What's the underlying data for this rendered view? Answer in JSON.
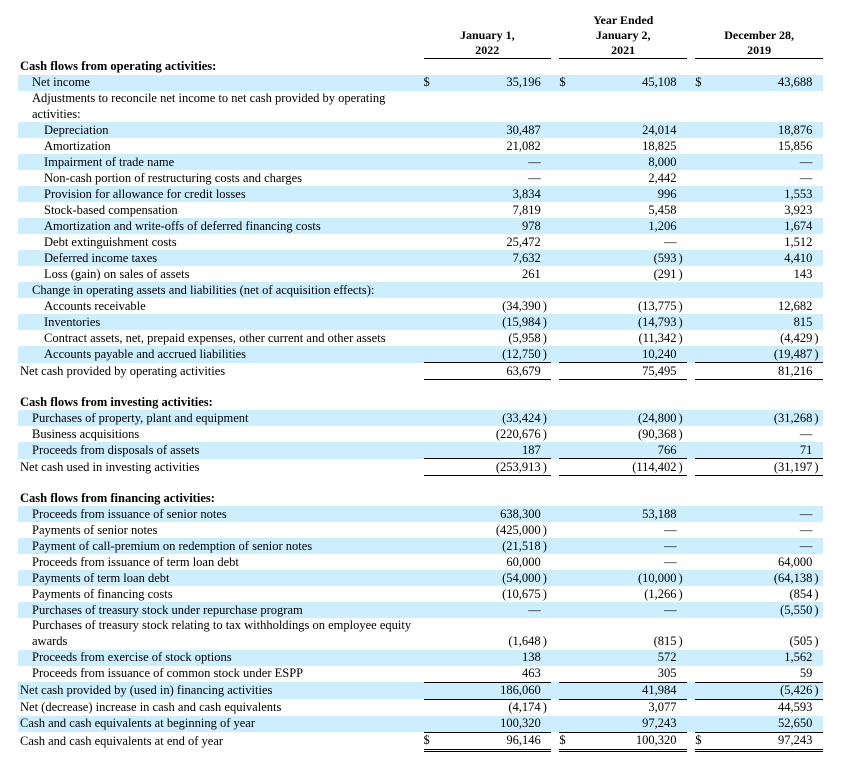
{
  "colors": {
    "shade": "#cceeff",
    "text": "#000000",
    "bg": "#ffffff"
  },
  "column_widths": {
    "label": 380,
    "gap": 8,
    "sym": 14,
    "num": 100,
    "par": 8
  },
  "header": {
    "mega": "Year Ended",
    "cols": [
      "January 1,\n2022",
      "January 2,\n2021",
      "December 28,\n2019"
    ]
  },
  "rows": [
    {
      "label": "Cash flows from operating activities:",
      "section": true
    },
    {
      "label": "Net income",
      "indent": 1,
      "shade": true,
      "sym": "$",
      "v": [
        "35,196",
        "45,108",
        "43,688"
      ]
    },
    {
      "label": "Adjustments to reconcile net income to net cash provided by operating activities:",
      "indent": 1,
      "wrap": true
    },
    {
      "label": "Depreciation",
      "indent": 2,
      "shade": true,
      "v": [
        "30,487",
        "24,014",
        "18,876"
      ]
    },
    {
      "label": "Amortization",
      "indent": 2,
      "v": [
        "21,082",
        "18,825",
        "15,856"
      ]
    },
    {
      "label": "Impairment of trade name",
      "indent": 2,
      "shade": true,
      "v": [
        "—",
        "8,000",
        "—"
      ]
    },
    {
      "label": "Non-cash portion of restructuring costs and charges",
      "indent": 2,
      "v": [
        "—",
        "2,442",
        "—"
      ]
    },
    {
      "label": "Provision for allowance for credit losses",
      "indent": 2,
      "shade": true,
      "v": [
        "3,834",
        "996",
        "1,553"
      ]
    },
    {
      "label": "Stock-based compensation",
      "indent": 2,
      "v": [
        "7,819",
        "5,458",
        "3,923"
      ]
    },
    {
      "label": "Amortization and write-offs of deferred financing costs",
      "indent": 2,
      "shade": true,
      "v": [
        "978",
        "1,206",
        "1,674"
      ]
    },
    {
      "label": "Debt extinguishment costs",
      "indent": 2,
      "v": [
        "25,472",
        "—",
        "1,512"
      ]
    },
    {
      "label": "Deferred income taxes",
      "indent": 2,
      "shade": true,
      "v": [
        "7,632",
        "(593)",
        "4,410"
      ]
    },
    {
      "label": "Loss (gain) on sales of assets",
      "indent": 2,
      "v": [
        "261",
        "(291)",
        "143"
      ]
    },
    {
      "label": "Change in operating assets and liabilities (net of acquisition effects):",
      "indent": 1,
      "shade": true
    },
    {
      "label": "Accounts receivable",
      "indent": 2,
      "v": [
        "(34,390)",
        "(13,775)",
        "12,682"
      ]
    },
    {
      "label": "Inventories",
      "indent": 2,
      "shade": true,
      "v": [
        "(15,984)",
        "(14,793)",
        "815"
      ]
    },
    {
      "label": "Contract assets, net, prepaid expenses, other current and other assets",
      "indent": 2,
      "v": [
        "(5,958)",
        "(11,342)",
        "(4,429)"
      ]
    },
    {
      "label": "Accounts payable and accrued liabilities",
      "indent": 2,
      "shade": true,
      "v": [
        "(12,750)",
        "10,240",
        "(19,487)"
      ]
    },
    {
      "label": "Net cash provided by operating activities",
      "border": "sub-top sub-bot",
      "v": [
        "63,679",
        "75,495",
        "81,216"
      ]
    },
    {
      "spacer": true
    },
    {
      "label": "Cash flows from investing activities:",
      "section": true
    },
    {
      "label": "Purchases of property, plant and equipment",
      "indent": 1,
      "shade": true,
      "v": [
        "(33,424)",
        "(24,800)",
        "(31,268)"
      ]
    },
    {
      "label": "Business acquisitions",
      "indent": 1,
      "v": [
        "(220,676)",
        "(90,368)",
        "—"
      ]
    },
    {
      "label": "Proceeds from disposals of assets",
      "indent": 1,
      "shade": true,
      "v": [
        "187",
        "766",
        "71"
      ]
    },
    {
      "label": "Net cash used in investing activities",
      "border": "sub-top sub-bot",
      "v": [
        "(253,913)",
        "(114,402)",
        "(31,197)"
      ]
    },
    {
      "spacer": true
    },
    {
      "label": "Cash flows from financing activities:",
      "section": true
    },
    {
      "label": "Proceeds from issuance of senior notes",
      "indent": 1,
      "shade": true,
      "v": [
        "638,300",
        "53,188",
        "—"
      ]
    },
    {
      "label": "Payments of senior notes",
      "indent": 1,
      "v": [
        "(425,000)",
        "—",
        "—"
      ]
    },
    {
      "label": "Payment of call-premium on redemption of senior notes",
      "indent": 1,
      "shade": true,
      "v": [
        "(21,518)",
        "—",
        "—"
      ]
    },
    {
      "label": "Proceeds from issuance of term loan debt",
      "indent": 1,
      "v": [
        "60,000",
        "—",
        "64,000"
      ]
    },
    {
      "label": "Payments of term loan debt",
      "indent": 1,
      "shade": true,
      "v": [
        "(54,000)",
        "(10,000)",
        "(64,138)"
      ]
    },
    {
      "label": "Payments of financing costs",
      "indent": 1,
      "v": [
        "(10,675)",
        "(1,266)",
        "(854)"
      ]
    },
    {
      "label": "Purchases of treasury stock under repurchase program",
      "indent": 1,
      "shade": true,
      "v": [
        "—",
        "—",
        "(5,550)"
      ]
    },
    {
      "label": "Purchases of treasury stock relating to tax withholdings on employee equity awards",
      "indent": 1,
      "wrap": true,
      "v": [
        "(1,648)",
        "(815)",
        "(505)"
      ]
    },
    {
      "label": "Proceeds from exercise of stock options",
      "indent": 1,
      "shade": true,
      "v": [
        "138",
        "572",
        "1,562"
      ]
    },
    {
      "label": "Proceeds from issuance of common stock under ESPP",
      "indent": 1,
      "v": [
        "463",
        "305",
        "59"
      ]
    },
    {
      "label": "Net cash provided by (used in) financing activities",
      "border": "sub-top",
      "shade": true,
      "v": [
        "186,060",
        "41,984",
        "(5,426)"
      ]
    },
    {
      "label": "Net (decrease) increase in cash and cash equivalents",
      "border": "sub-top",
      "v": [
        "(4,174)",
        "3,077",
        "44,593"
      ]
    },
    {
      "label": "Cash and cash equivalents at beginning of year",
      "shade": true,
      "v": [
        "100,320",
        "97,243",
        "52,650"
      ]
    },
    {
      "label": "Cash and cash equivalents at end of year",
      "sym": "$",
      "border": "sub-top dbl",
      "v": [
        "96,146",
        "100,320",
        "97,243"
      ]
    }
  ]
}
